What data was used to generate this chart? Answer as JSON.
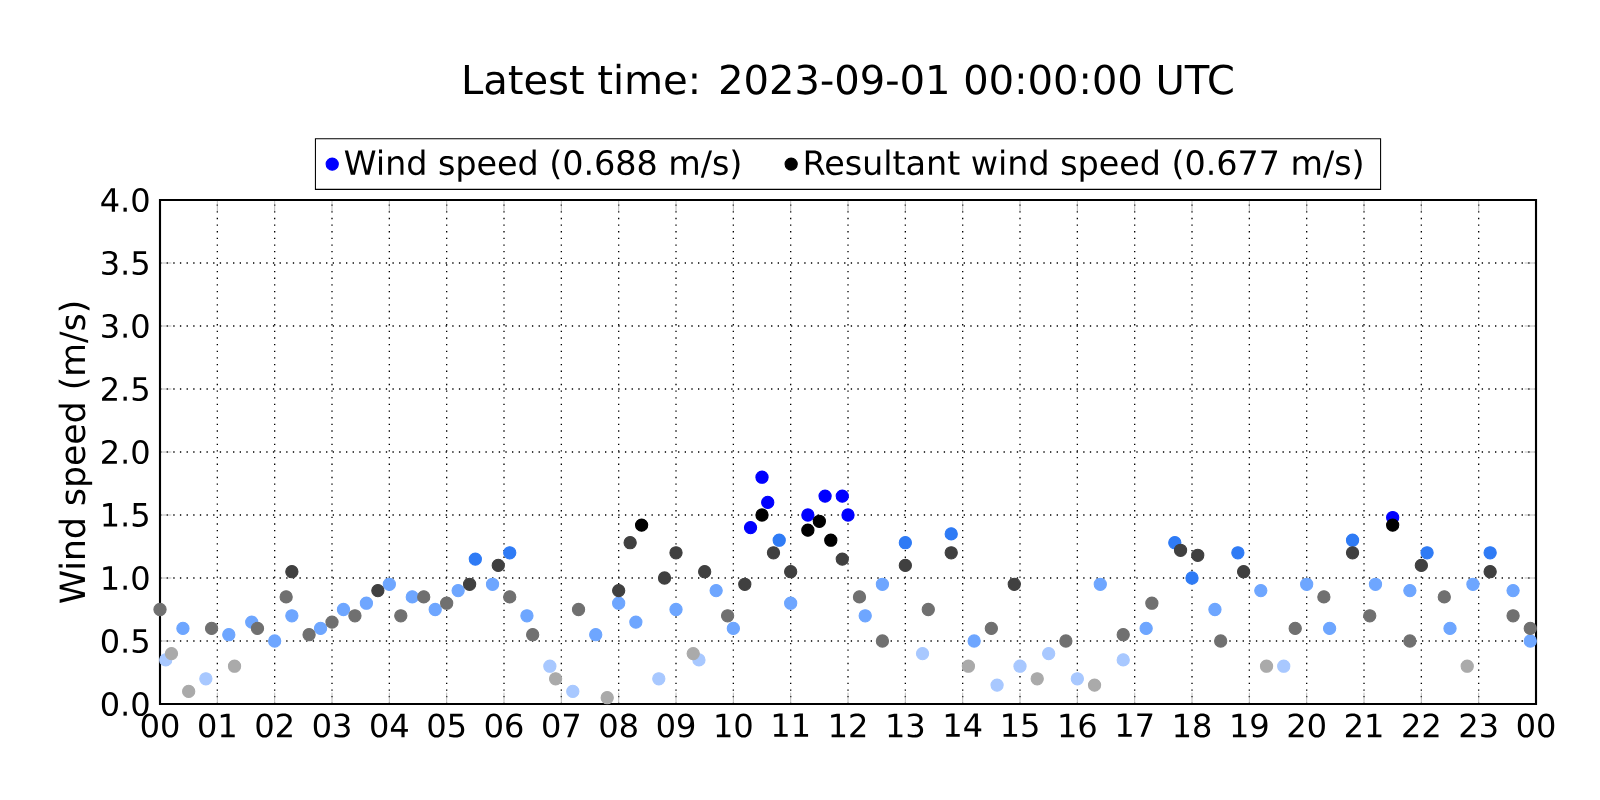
{
  "chart_data": {
    "type": "scatter",
    "title": "Latest time: 2023-09-01 00:00:00 UTC",
    "ylabel": "Wind speed (m/s)",
    "xlim": [
      0,
      24
    ],
    "ylim": [
      0,
      4
    ],
    "xticks": [
      {
        "value": 0,
        "label": "00"
      },
      {
        "value": 1,
        "label": "01"
      },
      {
        "value": 2,
        "label": "02"
      },
      {
        "value": 3,
        "label": "03"
      },
      {
        "value": 4,
        "label": "04"
      },
      {
        "value": 5,
        "label": "05"
      },
      {
        "value": 6,
        "label": "06"
      },
      {
        "value": 7,
        "label": "07"
      },
      {
        "value": 8,
        "label": "08"
      },
      {
        "value": 9,
        "label": "09"
      },
      {
        "value": 10,
        "label": "10"
      },
      {
        "value": 11,
        "label": "11"
      },
      {
        "value": 12,
        "label": "12"
      },
      {
        "value": 13,
        "label": "13"
      },
      {
        "value": 14,
        "label": "14"
      },
      {
        "value": 15,
        "label": "15"
      },
      {
        "value": 16,
        "label": "16"
      },
      {
        "value": 17,
        "label": "17"
      },
      {
        "value": 18,
        "label": "18"
      },
      {
        "value": 19,
        "label": "19"
      },
      {
        "value": 20,
        "label": "20"
      },
      {
        "value": 21,
        "label": "21"
      },
      {
        "value": 22,
        "label": "22"
      },
      {
        "value": 23,
        "label": "23"
      },
      {
        "value": 24,
        "label": "00"
      }
    ],
    "yticks": [
      {
        "value": 0,
        "label": "0.0"
      },
      {
        "value": 0.5,
        "label": "0.5"
      },
      {
        "value": 1,
        "label": "1.0"
      },
      {
        "value": 1.5,
        "label": "1.5"
      },
      {
        "value": 2,
        "label": "2.0"
      },
      {
        "value": 2.5,
        "label": "2.5"
      },
      {
        "value": 3,
        "label": "3.0"
      },
      {
        "value": 3.5,
        "label": "3.5"
      },
      {
        "value": 4,
        "label": "4.0"
      }
    ],
    "grid": true,
    "legend": "top",
    "series": [
      {
        "name": "Wind speed (0.688 m/s)",
        "color": "#0000ff",
        "x": [
          0.1,
          0.4,
          0.8,
          1.2,
          1.6,
          2.0,
          2.3,
          2.8,
          3.2,
          3.6,
          4.0,
          4.4,
          4.8,
          5.2,
          5.5,
          5.8,
          6.1,
          6.4,
          6.8,
          7.2,
          7.6,
          8.0,
          8.3,
          8.7,
          9.0,
          9.4,
          9.7,
          10.0,
          10.3,
          10.5,
          10.6,
          10.8,
          11.0,
          11.3,
          11.6,
          11.9,
          12.0,
          12.3,
          12.6,
          13.0,
          13.3,
          13.8,
          14.2,
          14.6,
          15.0,
          15.5,
          16.0,
          16.4,
          16.8,
          17.2,
          17.7,
          18.0,
          18.4,
          18.8,
          19.2,
          19.6,
          20.0,
          20.4,
          20.8,
          21.2,
          21.5,
          21.8,
          22.1,
          22.5,
          22.9,
          23.2,
          23.6,
          23.9
        ],
        "values": [
          0.35,
          0.6,
          0.2,
          0.55,
          0.65,
          0.5,
          0.7,
          0.6,
          0.75,
          0.8,
          0.95,
          0.85,
          0.75,
          0.9,
          1.15,
          0.95,
          1.2,
          0.7,
          0.3,
          0.1,
          0.55,
          0.8,
          0.65,
          0.2,
          0.75,
          0.35,
          0.9,
          0.6,
          1.4,
          1.8,
          1.6,
          1.3,
          0.8,
          1.5,
          1.65,
          1.65,
          1.5,
          0.7,
          0.95,
          1.28,
          0.4,
          1.35,
          0.5,
          0.15,
          0.3,
          0.4,
          0.2,
          0.95,
          0.35,
          0.6,
          1.28,
          1.0,
          0.75,
          1.2,
          0.9,
          0.3,
          0.95,
          0.6,
          1.3,
          0.95,
          1.48,
          0.9,
          1.2,
          0.6,
          0.95,
          1.2,
          0.9,
          0.5
        ],
        "colors": [
          "#a8c8ff",
          "#6ea6ff",
          "#a8c8ff",
          "#6ea6ff",
          "#6ea6ff",
          "#6ea6ff",
          "#6ea6ff",
          "#6ea6ff",
          "#6ea6ff",
          "#6ea6ff",
          "#6ea6ff",
          "#6ea6ff",
          "#6ea6ff",
          "#6ea6ff",
          "#2f7bf5",
          "#6ea6ff",
          "#2f7bf5",
          "#6ea6ff",
          "#a8c8ff",
          "#a8c8ff",
          "#6ea6ff",
          "#6ea6ff",
          "#6ea6ff",
          "#a8c8ff",
          "#6ea6ff",
          "#a8c8ff",
          "#6ea6ff",
          "#6ea6ff",
          "#0000ff",
          "#0000ff",
          "#0000ff",
          "#2f7bf5",
          "#6ea6ff",
          "#0000ff",
          "#0000ff",
          "#0000ff",
          "#0000ff",
          "#6ea6ff",
          "#6ea6ff",
          "#2f7bf5",
          "#a8c8ff",
          "#2f7bf5",
          "#6ea6ff",
          "#a8c8ff",
          "#a8c8ff",
          "#a8c8ff",
          "#a8c8ff",
          "#6ea6ff",
          "#a8c8ff",
          "#6ea6ff",
          "#2f7bf5",
          "#2f7bf5",
          "#6ea6ff",
          "#2f7bf5",
          "#6ea6ff",
          "#a8c8ff",
          "#6ea6ff",
          "#6ea6ff",
          "#2f7bf5",
          "#6ea6ff",
          "#0000ff",
          "#6ea6ff",
          "#2f7bf5",
          "#6ea6ff",
          "#6ea6ff",
          "#2f7bf5",
          "#6ea6ff",
          "#6ea6ff"
        ]
      },
      {
        "name": "Resultant wind speed (0.677 m/s)",
        "color": "#000000",
        "x": [
          0.0,
          0.2,
          0.5,
          0.9,
          1.3,
          1.7,
          2.2,
          2.3,
          2.6,
          3.0,
          3.4,
          3.8,
          4.2,
          4.6,
          5.0,
          5.4,
          5.9,
          6.1,
          6.5,
          6.9,
          7.3,
          7.8,
          8.0,
          8.2,
          8.4,
          8.8,
          9.0,
          9.3,
          9.5,
          9.9,
          10.2,
          10.5,
          10.7,
          11.0,
          11.3,
          11.5,
          11.7,
          11.9,
          12.2,
          12.6,
          13.0,
          13.4,
          13.8,
          14.1,
          14.5,
          14.9,
          15.3,
          15.8,
          16.3,
          16.8,
          17.3,
          17.8,
          18.1,
          18.5,
          18.9,
          19.3,
          19.8,
          20.3,
          20.8,
          21.1,
          21.5,
          21.8,
          22.0,
          22.4,
          22.8,
          23.2,
          23.6,
          23.9
        ],
        "values": [
          0.75,
          0.4,
          0.1,
          0.6,
          0.3,
          0.6,
          0.85,
          1.05,
          0.55,
          0.65,
          0.7,
          0.9,
          0.7,
          0.85,
          0.8,
          0.95,
          1.1,
          0.85,
          0.55,
          0.2,
          0.75,
          0.05,
          0.9,
          1.28,
          1.42,
          1.0,
          1.2,
          0.4,
          1.05,
          0.7,
          0.95,
          1.5,
          1.2,
          1.05,
          1.38,
          1.45,
          1.3,
          1.15,
          0.85,
          0.5,
          1.1,
          0.75,
          1.2,
          0.3,
          0.6,
          0.95,
          0.2,
          0.5,
          0.15,
          0.55,
          0.8,
          1.22,
          1.18,
          0.5,
          1.05,
          0.3,
          0.6,
          0.85,
          1.2,
          0.7,
          1.42,
          0.5,
          1.1,
          0.85,
          0.3,
          1.05,
          0.7,
          0.6
        ],
        "colors": [
          "#707070",
          "#aaaaaa",
          "#aaaaaa",
          "#707070",
          "#aaaaaa",
          "#707070",
          "#707070",
          "#404040",
          "#707070",
          "#707070",
          "#707070",
          "#404040",
          "#707070",
          "#707070",
          "#707070",
          "#404040",
          "#404040",
          "#707070",
          "#707070",
          "#aaaaaa",
          "#707070",
          "#aaaaaa",
          "#404040",
          "#404040",
          "#000000",
          "#404040",
          "#404040",
          "#aaaaaa",
          "#404040",
          "#707070",
          "#404040",
          "#000000",
          "#404040",
          "#404040",
          "#000000",
          "#000000",
          "#000000",
          "#404040",
          "#707070",
          "#707070",
          "#404040",
          "#707070",
          "#404040",
          "#aaaaaa",
          "#707070",
          "#404040",
          "#aaaaaa",
          "#707070",
          "#aaaaaa",
          "#707070",
          "#707070",
          "#404040",
          "#404040",
          "#707070",
          "#404040",
          "#aaaaaa",
          "#707070",
          "#707070",
          "#404040",
          "#707070",
          "#000000",
          "#707070",
          "#404040",
          "#707070",
          "#aaaaaa",
          "#404040",
          "#707070",
          "#707070"
        ]
      }
    ]
  }
}
